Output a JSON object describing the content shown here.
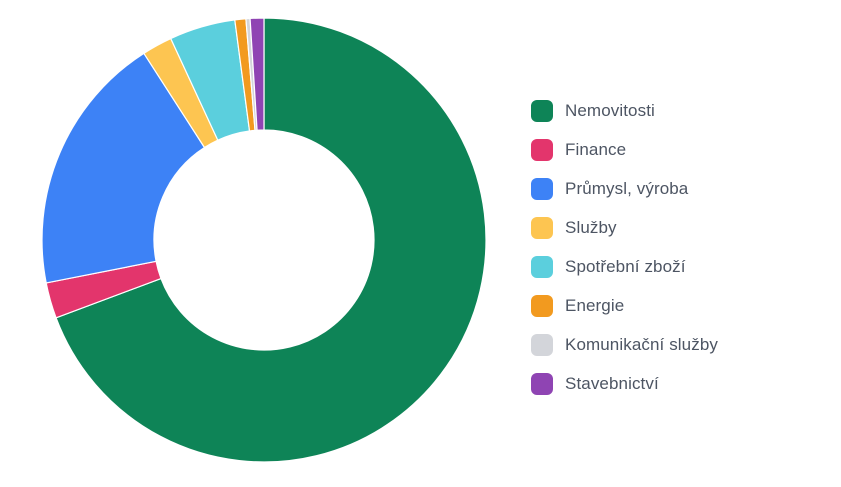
{
  "chart_data": {
    "type": "pie",
    "donut": true,
    "categories": [
      "Nemovitosti",
      "Finance",
      "Průmysl, výroba",
      "Služby",
      "Spotřební zboží",
      "Energie",
      "Komunikační služby",
      "Stavebnictví"
    ],
    "values": [
      69.3,
      2.6,
      19.0,
      2.2,
      4.8,
      0.8,
      0.3,
      1.0
    ],
    "unit": "%",
    "colors": [
      "#0e8457",
      "#e3356c",
      "#3d82f6",
      "#fdc551",
      "#5bcfdd",
      "#f29a1f",
      "#d3d5da",
      "#8f44b3"
    ],
    "legend_position": "right",
    "start_angle_deg": 0,
    "direction": "clockwise"
  }
}
